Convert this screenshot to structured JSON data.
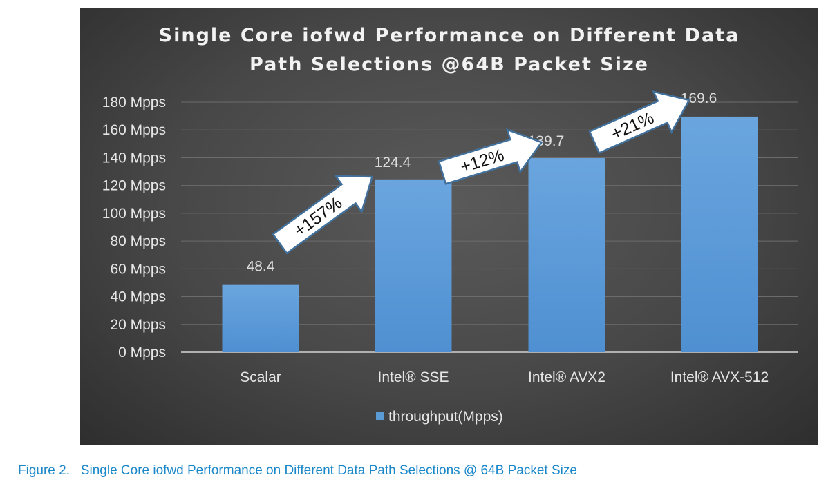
{
  "chart_data": {
    "type": "bar",
    "title_lines": [
      "Single Core iofwd Performance on Different Data",
      "Path Selections @64B Packet Size"
    ],
    "categories": [
      "Scalar",
      "Intel® SSE",
      "Intel® AVX2",
      "Intel® AVX-512"
    ],
    "series": [
      {
        "name": "throughput(Mpps)",
        "values": [
          48.4,
          124.4,
          139.7,
          169.6
        ],
        "color": "#5b9bd5"
      }
    ],
    "data_labels": [
      "48.4",
      "124.4",
      "139.7",
      "169.6"
    ],
    "ylim": [
      0,
      180
    ],
    "yticks": [
      "0 Mpps",
      "20 Mpps",
      "40 Mpps",
      "60 Mpps",
      "80 Mpps",
      "100 Mpps",
      "120 Mpps",
      "140 Mpps",
      "160 Mpps",
      "180 Mpps"
    ],
    "grid": true,
    "legend": "bottom",
    "annotations": [
      {
        "text": "+157%",
        "from": "Scalar",
        "to": "Intel® SSE"
      },
      {
        "text": "+12%",
        "from": "Intel® SSE",
        "to": "Intel® AVX2"
      },
      {
        "text": "+21%",
        "from": "Intel® AVX2",
        "to": "Intel® AVX-512"
      }
    ]
  },
  "caption": "Figure 2.   Single Core iofwd Performance on Different Data Path Selections @ 64B Packet Size"
}
